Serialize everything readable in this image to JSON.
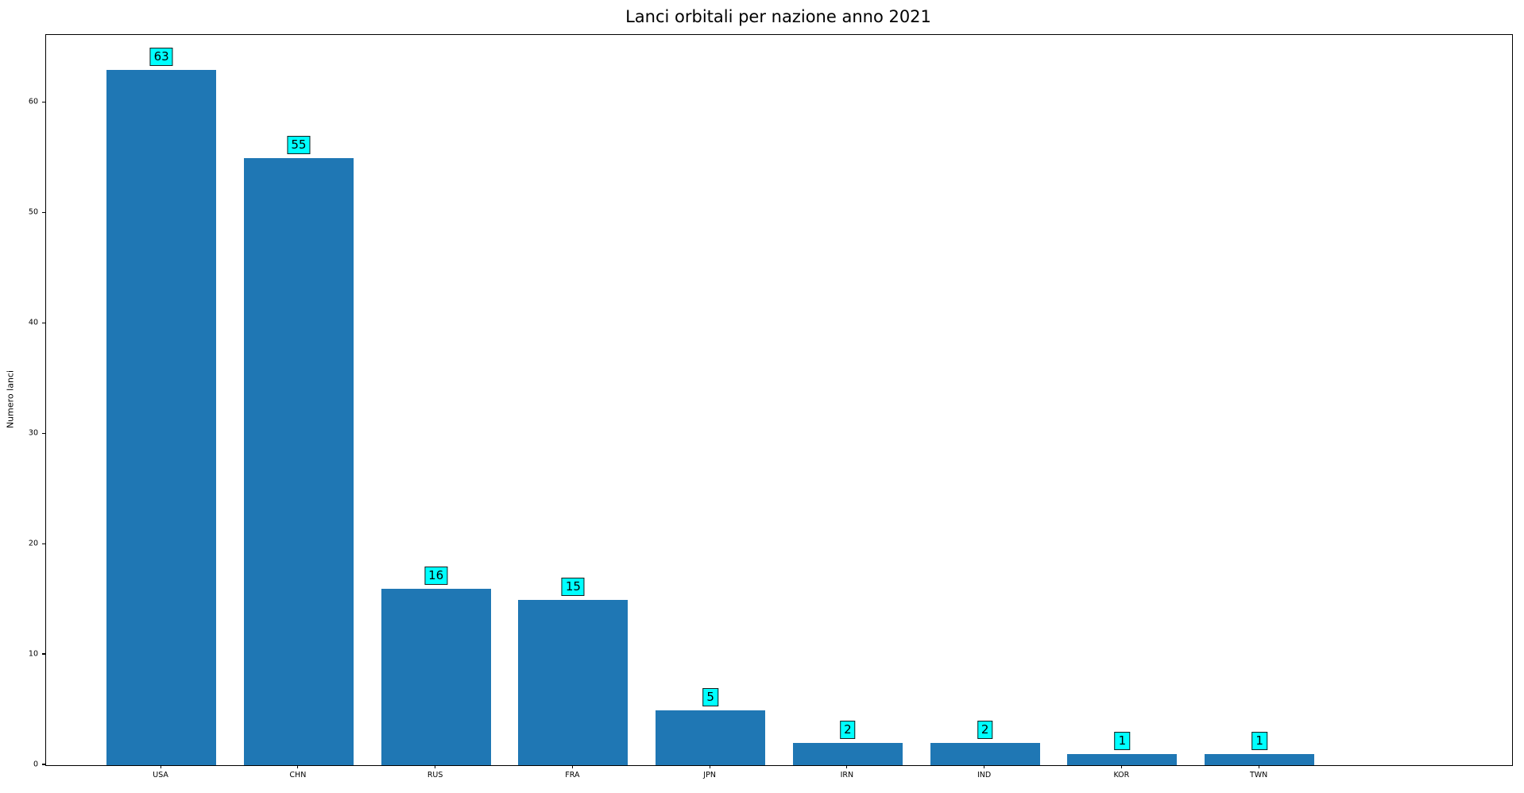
{
  "chart_data": {
    "type": "bar",
    "title": "Lanci orbitali per nazione anno 2021",
    "xlabel": "",
    "ylabel": "Numero lanci",
    "categories": [
      "USA",
      "CHN",
      "RUS",
      "FRA",
      "JPN",
      "IRN",
      "IND",
      "KOR",
      "TWN"
    ],
    "values": [
      63,
      55,
      16,
      15,
      5,
      2,
      2,
      1,
      1
    ],
    "data_labels": [
      "63",
      "55",
      "16",
      "15",
      "5",
      "2",
      "2",
      "1",
      "1"
    ],
    "yticks": [
      "0",
      "10",
      "20",
      "30",
      "40",
      "50",
      "60"
    ],
    "ytick_values": [
      0,
      10,
      20,
      30,
      40,
      50,
      60
    ],
    "ylim": [
      0,
      66.15
    ],
    "grid": false,
    "legend_position": "none",
    "bar_color": "#1f77b4",
    "annotation_fill": "#00ffff",
    "annotation_border": "#1a1a1a",
    "bar_width_fraction": 0.8,
    "x_edge_padding_units": 0.84
  }
}
